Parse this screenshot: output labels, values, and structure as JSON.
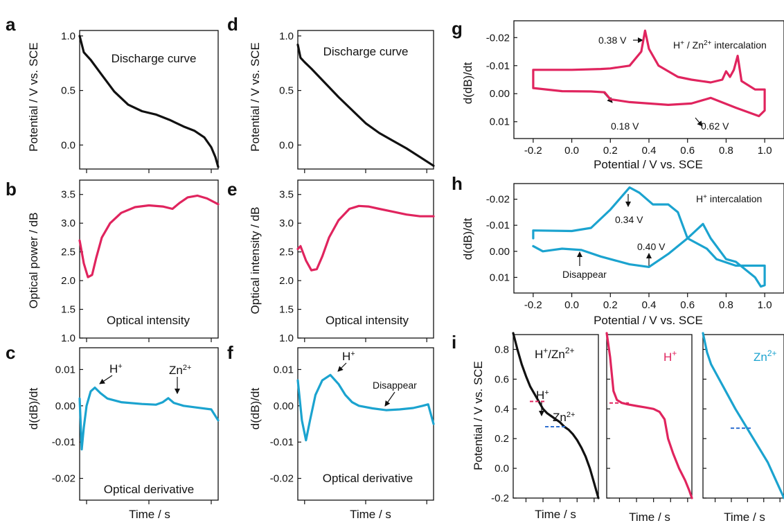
{
  "colors": {
    "black": "#111111",
    "pink": "#e0245e",
    "blue": "#1ba3cf"
  },
  "chart_data": [
    {
      "id": "a",
      "panel_label": "a",
      "type": "line",
      "ylabel": "Potential / V vs. SCE",
      "xlabel": "",
      "annotation": "Discharge curve",
      "ylim": [
        -0.22,
        1.05
      ],
      "yticks": [
        "1.0",
        "0.5",
        "0.0"
      ],
      "series": [
        {
          "color": "black",
          "x": [
            0,
            0.03,
            0.08,
            0.15,
            0.25,
            0.35,
            0.45,
            0.55,
            0.65,
            0.75,
            0.83,
            0.9,
            0.95,
            0.98,
            1.0
          ],
          "y": [
            1.0,
            0.85,
            0.78,
            0.66,
            0.49,
            0.37,
            0.31,
            0.28,
            0.23,
            0.17,
            0.13,
            0.07,
            -0.02,
            -0.11,
            -0.2
          ]
        }
      ]
    },
    {
      "id": "b",
      "panel_label": "b",
      "type": "line",
      "ylabel": "Optical power / dB",
      "xlabel": "",
      "annotation": "Optical intensity",
      "ylim": [
        1.0,
        3.75
      ],
      "yticks": [
        "1.0",
        "1.5",
        "2.0",
        "2.5",
        "3.0",
        "3.5"
      ],
      "series": [
        {
          "color": "pink",
          "x": [
            0,
            0.03,
            0.06,
            0.09,
            0.12,
            0.16,
            0.22,
            0.3,
            0.4,
            0.5,
            0.6,
            0.67,
            0.72,
            0.78,
            0.85,
            0.92,
            1.0
          ],
          "y": [
            2.7,
            2.3,
            2.06,
            2.1,
            2.4,
            2.75,
            3.0,
            3.18,
            3.28,
            3.31,
            3.29,
            3.25,
            3.35,
            3.45,
            3.48,
            3.43,
            3.33
          ]
        }
      ]
    },
    {
      "id": "c",
      "panel_label": "c",
      "type": "line",
      "ylabel": "d(dB)/dt",
      "xlabel": "Time / s",
      "annotation": "Optical derivative",
      "ylim": [
        -0.026,
        0.016
      ],
      "yticks": [
        "0.01",
        "0.00",
        "-0.01",
        "-0.02"
      ],
      "peak_labels": [
        "H+",
        "Zn2+"
      ],
      "series": [
        {
          "color": "blue",
          "x": [
            0,
            0.015,
            0.03,
            0.05,
            0.08,
            0.11,
            0.15,
            0.2,
            0.3,
            0.45,
            0.55,
            0.6,
            0.64,
            0.68,
            0.75,
            0.85,
            0.95,
            1.0
          ],
          "y": [
            0.002,
            -0.012,
            -0.006,
            0.0,
            0.004,
            0.005,
            0.0035,
            0.002,
            0.001,
            0.0005,
            0.0003,
            0.001,
            0.0021,
            0.0008,
            0.0,
            -0.0005,
            -0.001,
            -0.004
          ]
        }
      ]
    },
    {
      "id": "d",
      "panel_label": "d",
      "type": "line",
      "ylabel": "Potential / V vs. SCE",
      "xlabel": "",
      "annotation": "Discharge curve",
      "ylim": [
        -0.22,
        1.05
      ],
      "yticks": [
        "1.0",
        "0.5",
        "0.0"
      ],
      "series": [
        {
          "color": "black",
          "x": [
            0,
            0.02,
            0.05,
            0.1,
            0.2,
            0.3,
            0.4,
            0.5,
            0.6,
            0.7,
            0.8,
            0.9,
            1.0
          ],
          "y": [
            0.92,
            0.8,
            0.76,
            0.7,
            0.57,
            0.44,
            0.32,
            0.2,
            0.11,
            0.04,
            -0.03,
            -0.11,
            -0.19
          ]
        }
      ]
    },
    {
      "id": "e",
      "panel_label": "e",
      "type": "line",
      "ylabel": "Optical intensity / dB",
      "xlabel": "",
      "annotation": "Optical intensity",
      "ylim": [
        1.0,
        3.75
      ],
      "yticks": [
        "1.0",
        "1.5",
        "2.0",
        "2.5",
        "3.0",
        "3.5"
      ],
      "series": [
        {
          "color": "pink",
          "x": [
            0,
            0.02,
            0.06,
            0.1,
            0.14,
            0.18,
            0.23,
            0.3,
            0.38,
            0.45,
            0.52,
            0.6,
            0.7,
            0.8,
            0.9,
            1.0
          ],
          "y": [
            2.55,
            2.6,
            2.35,
            2.18,
            2.2,
            2.42,
            2.75,
            3.05,
            3.25,
            3.3,
            3.29,
            3.25,
            3.2,
            3.15,
            3.12,
            3.12
          ]
        }
      ]
    },
    {
      "id": "f",
      "panel_label": "f",
      "type": "line",
      "ylabel": "d(dB)/dt",
      "xlabel": "Time / s",
      "annotation": "Optical derivative",
      "peak_labels": [
        "H+",
        "Disappear"
      ],
      "ylim": [
        -0.026,
        0.016
      ],
      "yticks": [
        "0.01",
        "0.00",
        "-0.01",
        "-0.02"
      ],
      "series": [
        {
          "color": "blue",
          "x": [
            0,
            0.03,
            0.06,
            0.09,
            0.13,
            0.18,
            0.24,
            0.3,
            0.35,
            0.4,
            0.45,
            0.55,
            0.65,
            0.75,
            0.85,
            0.92,
            0.96,
            1.0
          ],
          "y": [
            0.007,
            -0.004,
            -0.0095,
            -0.004,
            0.003,
            0.007,
            0.0085,
            0.006,
            0.003,
            0.001,
            0.0,
            -0.0007,
            -0.0012,
            -0.001,
            -0.0006,
            0.0,
            0.0004,
            -0.005
          ]
        }
      ]
    },
    {
      "id": "g",
      "panel_label": "g",
      "type": "line",
      "ylabel": "d(dB)/dt",
      "xlabel": "Potential / V vs. SCE",
      "annotation": "H+ / Zn2+ intercalation",
      "callouts": [
        "0.38 V",
        "0.18 V",
        "0.62 V"
      ],
      "xlim": [
        -0.3,
        1.1
      ],
      "ylim": [
        0.016,
        -0.026
      ],
      "xticks": [
        "-0.2",
        "0.0",
        "0.2",
        "0.4",
        "0.6",
        "0.8",
        "1.0"
      ],
      "yticks": [
        "-0.02",
        "-0.01",
        "0.00",
        "0.01"
      ],
      "series": [
        {
          "color": "pink",
          "x": [
            -0.2,
            -0.2,
            0.0,
            0.15,
            0.2,
            0.3,
            0.36,
            0.38,
            0.4,
            0.45,
            0.55,
            0.62,
            0.72,
            0.78,
            0.8,
            0.82,
            0.84,
            0.86,
            0.88,
            0.95,
            1.0,
            1.0,
            0.97,
            0.85,
            0.72,
            0.62,
            0.5,
            0.3,
            0.2,
            0.17,
            0.1,
            -0.05,
            -0.2
          ],
          "y": [
            -0.002,
            -0.0085,
            -0.0085,
            -0.0088,
            -0.009,
            -0.01,
            -0.015,
            -0.0225,
            -0.016,
            -0.01,
            -0.006,
            -0.005,
            -0.004,
            -0.005,
            -0.008,
            -0.006,
            -0.0085,
            -0.0135,
            -0.0045,
            -0.0015,
            -0.0015,
            0.006,
            0.008,
            0.005,
            0.0015,
            0.0035,
            0.004,
            0.003,
            0.002,
            -0.0005,
            -0.0008,
            -0.0009,
            -0.002
          ]
        }
      ]
    },
    {
      "id": "h",
      "panel_label": "h",
      "type": "line",
      "ylabel": "d(dB)/dt",
      "xlabel": "Potential / V vs. SCE",
      "annotation": "H+ intercalation",
      "callouts": [
        "0.34 V",
        "0.40 V",
        "Disappear"
      ],
      "xlim": [
        -0.3,
        1.1
      ],
      "ylim": [
        0.016,
        -0.026
      ],
      "xticks": [
        "-0.2",
        "0.0",
        "0.2",
        "0.4",
        "0.6",
        "0.8",
        "1.0"
      ],
      "yticks": [
        "-0.02",
        "-0.01",
        "0.00",
        "0.01"
      ],
      "series": [
        {
          "color": "blue",
          "x": [
            -0.2,
            -0.2,
            0.0,
            0.1,
            0.2,
            0.3,
            0.35,
            0.42,
            0.5,
            0.55,
            0.6,
            0.7,
            0.75,
            0.85,
            0.95,
            1.0,
            1.0,
            0.98,
            0.95,
            0.85,
            0.8,
            0.72,
            0.68,
            0.6,
            0.5,
            0.4,
            0.3,
            0.15,
            0.05,
            -0.05,
            -0.15,
            -0.2
          ],
          "y": [
            -0.005,
            -0.008,
            -0.0078,
            -0.009,
            -0.016,
            -0.0245,
            -0.0225,
            -0.018,
            -0.018,
            -0.015,
            -0.005,
            -0.001,
            0.003,
            0.0055,
            0.0055,
            0.0055,
            0.013,
            0.0135,
            0.01,
            0.004,
            0.003,
            -0.005,
            -0.0105,
            -0.005,
            0.001,
            0.006,
            0.005,
            0.002,
            -0.0005,
            -0.001,
            0.0,
            -0.002
          ]
        }
      ]
    },
    {
      "id": "i1",
      "panel_label": "i",
      "type": "line",
      "ylabel": "Potential / V vs. SCE",
      "xlabel": "Time / s",
      "annotation": "H+/Zn2+",
      "markers": [
        "H+",
        "Zn2+"
      ],
      "ylim": [
        -0.2,
        0.9
      ],
      "yticks": [
        "0.8",
        "0.6",
        "0.4",
        "0.2",
        "0.0",
        "-0.2"
      ],
      "series": [
        {
          "color": "black",
          "x": [
            0,
            0.05,
            0.1,
            0.15,
            0.2,
            0.25,
            0.3,
            0.35,
            0.4,
            0.45,
            0.5,
            0.55,
            0.6,
            0.65,
            0.7,
            0.75,
            0.8,
            0.85,
            0.9,
            0.95,
            1.0
          ],
          "y": [
            0.91,
            0.8,
            0.7,
            0.62,
            0.55,
            0.5,
            0.45,
            0.4,
            0.37,
            0.35,
            0.33,
            0.31,
            0.28,
            0.26,
            0.23,
            0.19,
            0.14,
            0.08,
            0.0,
            -0.1,
            -0.2
          ]
        }
      ]
    },
    {
      "id": "i2",
      "panel_label": "",
      "type": "line",
      "ylabel": "",
      "xlabel": "Time / s",
      "annotation": "H+",
      "ylim": [
        -0.2,
        0.9
      ],
      "series": [
        {
          "color": "pink",
          "x": [
            0,
            0.04,
            0.08,
            0.12,
            0.18,
            0.25,
            0.35,
            0.45,
            0.55,
            0.62,
            0.68,
            0.72,
            0.78,
            0.85,
            0.92,
            0.97,
            1.0
          ],
          "y": [
            0.91,
            0.75,
            0.52,
            0.46,
            0.44,
            0.43,
            0.42,
            0.41,
            0.4,
            0.38,
            0.33,
            0.2,
            0.1,
            0.0,
            -0.08,
            -0.15,
            -0.2
          ]
        }
      ]
    },
    {
      "id": "i3",
      "panel_label": "",
      "type": "line",
      "ylabel": "",
      "xlabel": "Time / s",
      "annotation": "Zn2+",
      "ylim": [
        -0.2,
        0.9
      ],
      "series": [
        {
          "color": "blue",
          "x": [
            0,
            0.05,
            0.1,
            0.2,
            0.3,
            0.4,
            0.5,
            0.6,
            0.7,
            0.8,
            0.9,
            1.0
          ],
          "y": [
            0.91,
            0.78,
            0.7,
            0.6,
            0.5,
            0.4,
            0.31,
            0.22,
            0.13,
            0.04,
            -0.08,
            -0.2
          ]
        }
      ]
    }
  ]
}
